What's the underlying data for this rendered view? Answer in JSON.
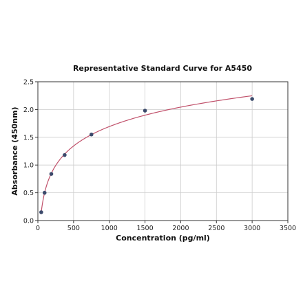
{
  "chart_data": {
    "type": "scatter",
    "title": "Representative Standard Curve for A5450",
    "xlabel": "Concentration (pg/ml)",
    "ylabel": "Absorbance (450nm)",
    "xlim": [
      0,
      3500
    ],
    "ylim": [
      0,
      2.5
    ],
    "xticks": [
      0,
      500,
      1000,
      1500,
      2000,
      2500,
      3000,
      3500
    ],
    "yticks": [
      0.0,
      0.5,
      1.0,
      1.5,
      2.0,
      2.5
    ],
    "xtick_labels": [
      "0",
      "500",
      "1000",
      "1500",
      "2000",
      "2500",
      "3000",
      "3500"
    ],
    "ytick_labels": [
      "0.0",
      "0.5",
      "1.0",
      "1.5",
      "2.0",
      "2.5"
    ],
    "grid": true,
    "series": [
      {
        "x": [
          47,
          94,
          188,
          375,
          750,
          1500,
          3000
        ],
        "y": [
          0.15,
          0.5,
          0.84,
          1.18,
          1.55,
          1.98,
          2.19
        ],
        "marker_color": "#3b4a6b",
        "fit_color": "#c0506a"
      }
    ]
  }
}
